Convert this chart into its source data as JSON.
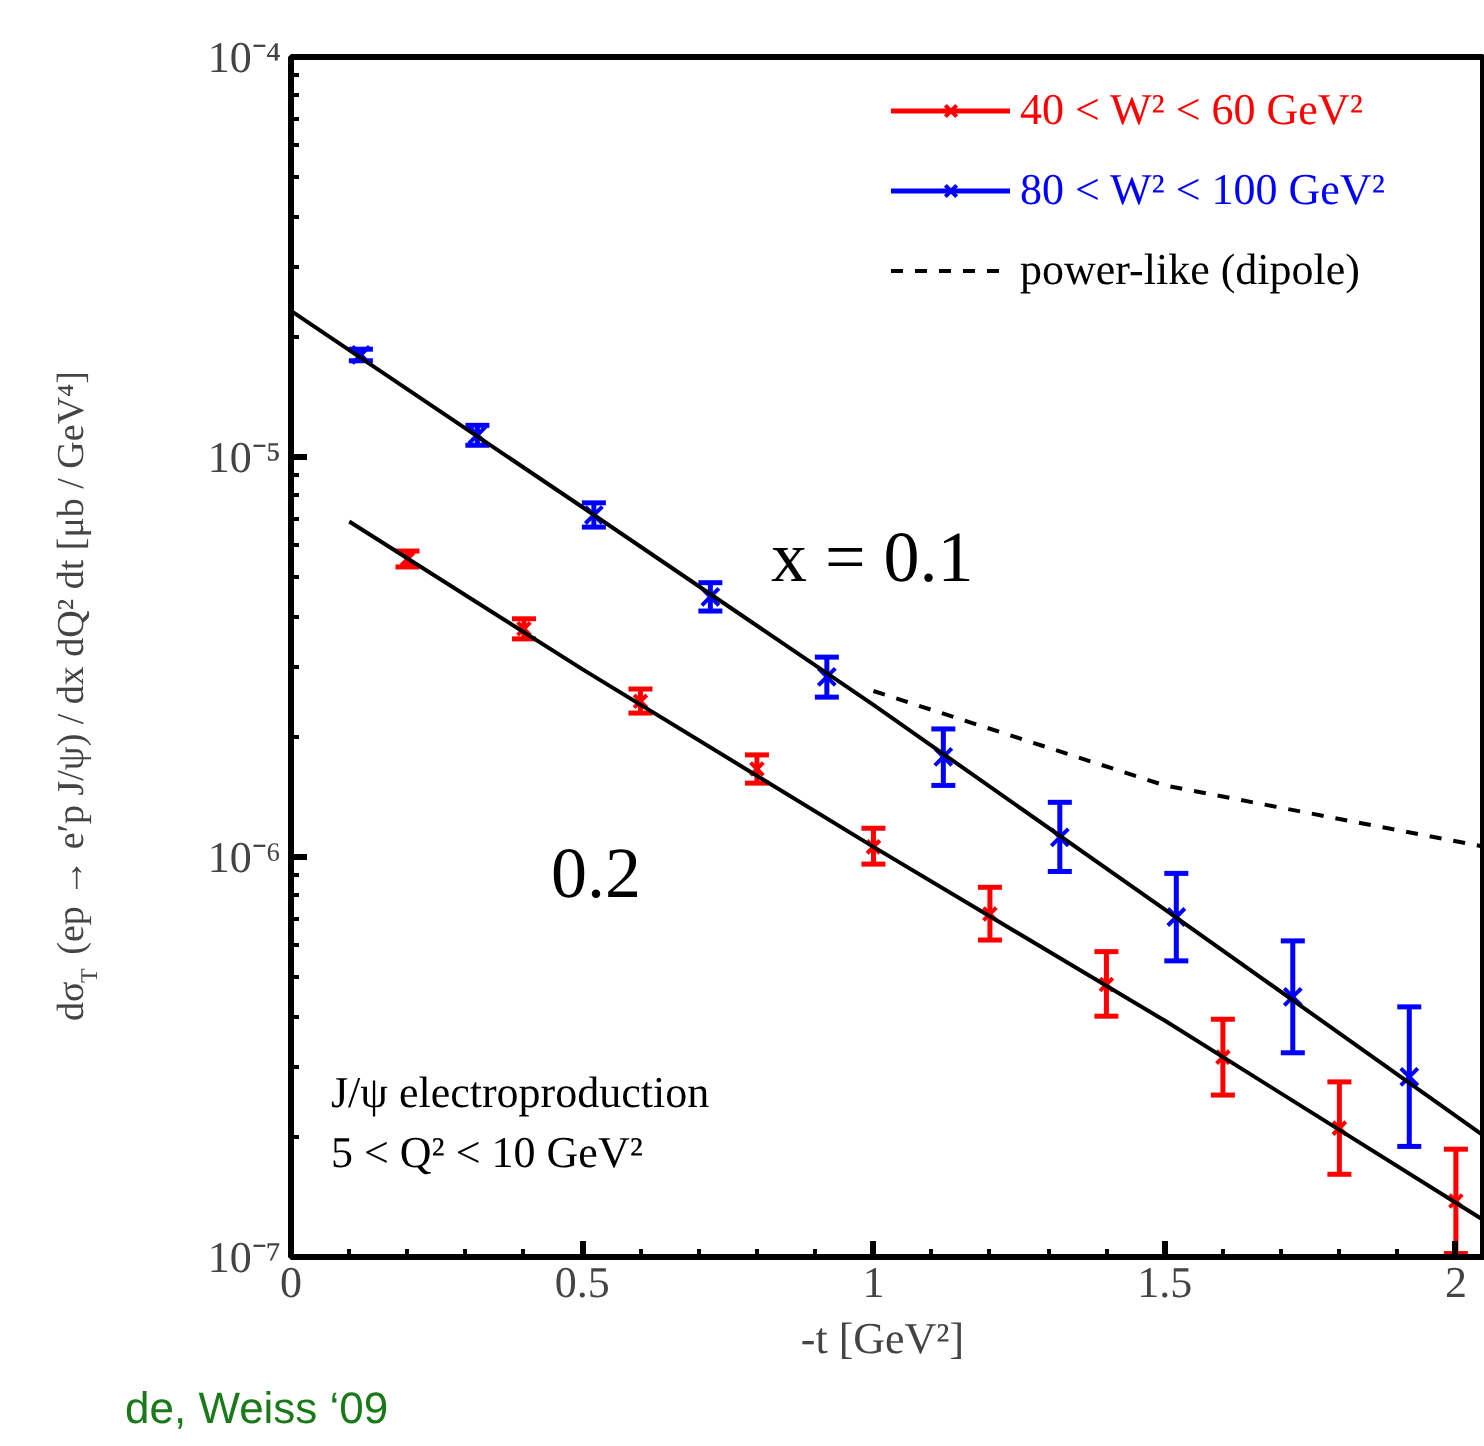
{
  "chart_data": {
    "type": "scatter",
    "xlabel": "-t  [GeV²]",
    "ylabel": "dσ$_{T}$ (ep → e′p J/ψ) / dx dQ² dt  [μb / GeV⁴]",
    "log": "y",
    "xlim": [
      0,
      2.05
    ],
    "ylim": [
      1e-07,
      0.0001
    ],
    "xticks": [
      0,
      0.5,
      1,
      1.5,
      2
    ],
    "yticks": [
      {
        "value": 1e-07,
        "label": "10⁻⁷"
      },
      {
        "value": 1e-06,
        "label": "10⁻⁶"
      },
      {
        "value": 1e-05,
        "label": "10⁻⁵"
      },
      {
        "value": 0.0001,
        "label": "10⁻⁴"
      }
    ],
    "grid": false,
    "legend": "top right",
    "series": [
      {
        "name": "40 < W² < 60 GeV²",
        "color": "#ff0000",
        "marker": "cross",
        "x": [
          0.2,
          0.4,
          0.6,
          0.8,
          1.0,
          1.2,
          1.4,
          1.6,
          1.8,
          2.0
        ],
        "values": [
          5.56e-06,
          3.72e-06,
          2.45e-06,
          1.66e-06,
          1.06e-06,
          7.2e-07,
          4.8e-07,
          3.16e-07,
          2.1e-07,
          1.38e-07
        ],
        "errors": [
          [
            5.31e-06,
            5.82e-06
          ],
          [
            3.51e-06,
            3.94e-06
          ],
          [
            2.29e-06,
            2.63e-06
          ],
          [
            1.53e-06,
            1.8e-06
          ],
          [
            9.6e-07,
            1.18e-06
          ],
          [
            6.2e-07,
            8.4e-07
          ],
          [
            4e-07,
            5.8e-07
          ],
          [
            2.54e-07,
            3.93e-07
          ],
          [
            1.61e-07,
            2.74e-07
          ],
          [
            1.02e-07,
            1.86e-07
          ]
        ]
      },
      {
        "name": "80 < W² < 100 GeV²",
        "color": "#0000ff",
        "marker": "cross",
        "x": [
          0.12,
          0.32,
          0.52,
          0.72,
          0.92,
          1.12,
          1.32,
          1.52,
          1.72,
          1.92
        ],
        "values": [
          1.8e-05,
          1.135e-05,
          7.16e-06,
          4.47e-06,
          2.82e-06,
          1.78e-06,
          1.12e-06,
          7.08e-07,
          4.47e-07,
          2.82e-07
        ],
        "errors": [
          [
            1.74e-05,
            1.86e-05
          ],
          [
            1.07e-05,
            1.2e-05
          ],
          [
            6.68e-06,
            7.68e-06
          ],
          [
            4.12e-06,
            4.85e-06
          ],
          [
            2.51e-06,
            3.16e-06
          ],
          [
            1.51e-06,
            2.09e-06
          ],
          [
            9.2e-07,
            1.37e-06
          ],
          [
            5.5e-07,
            9.1e-07
          ],
          [
            3.24e-07,
            6.17e-07
          ],
          [
            1.89e-07,
            4.22e-07
          ]
        ]
      },
      {
        "name": "power-like (dipole)",
        "type": "line",
        "color": "#000000",
        "line_style": "dashed",
        "x": [
          1.0,
          1.5,
          2.05
        ],
        "values": [
          2.6e-06,
          1.51e-06,
          1.06e-06
        ]
      },
      {
        "type": "line",
        "color": "#000000",
        "line_style": "solid",
        "x": [
          0,
          0.5,
          1.0,
          1.5,
          2.05
        ],
        "values": [
          2.32e-05,
          7.5e-06,
          2.4e-06,
          7.4e-07,
          2e-07
        ]
      },
      {
        "type": "line",
        "color": "#000000",
        "line_style": "solid",
        "x": [
          0.1,
          0.5,
          1.0,
          1.5,
          2.05
        ],
        "values": [
          6.9e-06,
          2.95e-06,
          1.06e-06,
          3.9e-07,
          1.23e-07
        ]
      }
    ],
    "annotations": [
      "x = 0.1",
      "0.2",
      "J/ψ   electroproduction",
      "5 < Q² < 10 GeV²",
      "de, Weiss ‘09"
    ]
  }
}
